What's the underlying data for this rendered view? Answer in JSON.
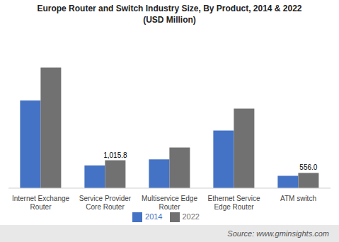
{
  "chart_data": {
    "type": "bar",
    "title": "Europe Router and Switch Industry Size, By Product, 2014 & 2022\n(USD Million)",
    "categories": [
      "Internet Exchange\nRouter",
      "Service Provider\nCore Router",
      "Multiservice Edge\nRouter",
      "Ethernet Service\nEdge Router",
      "ATM switch"
    ],
    "series": [
      {
        "name": "2014",
        "color": "#4472C4",
        "values": [
          3200,
          830,
          1050,
          2100,
          450
        ]
      },
      {
        "name": "2022",
        "color": "#717171",
        "values": [
          4400,
          1015.8,
          1480,
          2900,
          556.0
        ],
        "value_labels": [
          null,
          "1,015.8",
          null,
          null,
          "556.0"
        ]
      }
    ],
    "ylim": [
      0,
      5368
    ],
    "grid": false,
    "legend": "bottom",
    "tick_labels": "x",
    "source": "Source: www.gminsights.com"
  }
}
